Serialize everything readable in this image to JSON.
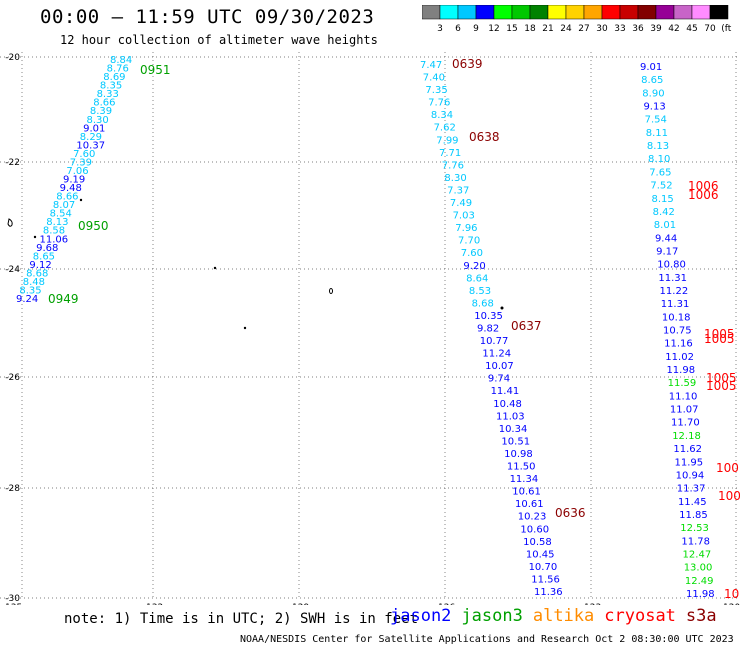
{
  "header": {
    "title": "00:00 – 11:59 UTC 09/30/2023",
    "subtitle": "12 hour collection of altimeter wave heights"
  },
  "colorbar": {
    "labels": [
      "3",
      "6",
      "9",
      "12",
      "15",
      "18",
      "21",
      "24",
      "27",
      "30",
      "33",
      "36",
      "39",
      "42",
      "45",
      "70",
      "(ft)"
    ],
    "colors": [
      "#808080",
      "#00ffff",
      "#00c8ff",
      "#0000ff",
      "#00ff00",
      "#00c800",
      "#008200",
      "#ffff00",
      "#ffd200",
      "#ffa500",
      "#ff0000",
      "#c80000",
      "#820000",
      "#960096",
      "#c864c8",
      "#ff8cff",
      "#000000"
    ]
  },
  "axes": {
    "y_ticks": [
      "-20",
      "-22",
      "-24",
      "-26",
      "-28",
      "-30"
    ],
    "x_ticks": [
      "-135",
      "-132",
      "-129",
      "-126",
      "-123",
      "-120"
    ]
  },
  "map_data": {
    "series": [
      {
        "name": "jason2",
        "color": "#0000ff"
      },
      {
        "name": "jason3",
        "color": "#00a000"
      },
      {
        "name": "altika",
        "color": "#ff8c00"
      },
      {
        "name": "cryosat",
        "color": "#ff0000"
      },
      {
        "name": "s3a",
        "color": "#8b0000"
      }
    ],
    "left_track_values": [
      {
        "v": "8.84",
        "c": "#00c8ff"
      },
      {
        "v": "8.76",
        "c": "#00c8ff"
      },
      {
        "v": "8.69",
        "c": "#00c8ff"
      },
      {
        "v": "8.35",
        "c": "#00c8ff"
      },
      {
        "v": "8.33",
        "c": "#00c8ff"
      },
      {
        "v": "8.66",
        "c": "#00c8ff"
      },
      {
        "v": "8.39",
        "c": "#00c8ff"
      },
      {
        "v": "8.30",
        "c": "#00c8ff"
      },
      {
        "v": "9.01",
        "c": "#0000ff"
      },
      {
        "v": "8.29",
        "c": "#00c8ff"
      },
      {
        "v": "10.37",
        "c": "#0000ff"
      },
      {
        "v": "7.60",
        "c": "#00c8ff"
      },
      {
        "v": "7.39",
        "c": "#00c8ff"
      },
      {
        "v": "7.06",
        "c": "#00c8ff"
      },
      {
        "v": "9.19",
        "c": "#0000ff"
      },
      {
        "v": "9.48",
        "c": "#0000ff"
      },
      {
        "v": "8.66",
        "c": "#00c8ff"
      },
      {
        "v": "8.07",
        "c": "#00c8ff"
      },
      {
        "v": "8.54",
        "c": "#00c8ff"
      },
      {
        "v": "8.13",
        "c": "#00c8ff"
      },
      {
        "v": "8.58",
        "c": "#00c8ff"
      },
      {
        "v": "11.06",
        "c": "#0000ff"
      },
      {
        "v": "9.68",
        "c": "#0000ff"
      },
      {
        "v": "8.65",
        "c": "#00c8ff"
      },
      {
        "v": "9.12",
        "c": "#0000ff"
      },
      {
        "v": "8.68",
        "c": "#00c8ff"
      },
      {
        "v": "8.48",
        "c": "#00c8ff"
      },
      {
        "v": "8.35",
        "c": "#00c8ff"
      },
      {
        "v": "9.24",
        "c": "#0000ff"
      }
    ],
    "left_track_times": [
      {
        "t": "0951",
        "c": "#00a000"
      },
      {
        "t": "0950",
        "c": "#00a000"
      },
      {
        "t": "0949",
        "c": "#00a000"
      }
    ],
    "mid_track_values": [
      {
        "v": "7.47",
        "c": "#00c8ff"
      },
      {
        "v": "7.40",
        "c": "#00c8ff"
      },
      {
        "v": "7.35",
        "c": "#00c8ff"
      },
      {
        "v": "7.76",
        "c": "#00c8ff"
      },
      {
        "v": "8.34",
        "c": "#00c8ff"
      },
      {
        "v": "7.62",
        "c": "#00c8ff"
      },
      {
        "v": "7.99",
        "c": "#00c8ff"
      },
      {
        "v": "7.71",
        "c": "#00c8ff"
      },
      {
        "v": "7.76",
        "c": "#00c8ff"
      },
      {
        "v": "8.30",
        "c": "#00c8ff"
      },
      {
        "v": "7.37",
        "c": "#00c8ff"
      },
      {
        "v": "7.49",
        "c": "#00c8ff"
      },
      {
        "v": "7.03",
        "c": "#00c8ff"
      },
      {
        "v": "7.96",
        "c": "#00c8ff"
      },
      {
        "v": "7.70",
        "c": "#00c8ff"
      },
      {
        "v": "7.60",
        "c": "#00c8ff"
      },
      {
        "v": "9.20",
        "c": "#0000ff"
      },
      {
        "v": "8.64",
        "c": "#00c8ff"
      },
      {
        "v": "8.53",
        "c": "#00c8ff"
      },
      {
        "v": "8.68",
        "c": "#00c8ff"
      },
      {
        "v": "10.35",
        "c": "#0000ff"
      },
      {
        "v": "9.82",
        "c": "#0000ff"
      },
      {
        "v": "10.77",
        "c": "#0000ff"
      },
      {
        "v": "11.24",
        "c": "#0000ff"
      },
      {
        "v": "10.07",
        "c": "#0000ff"
      },
      {
        "v": "9.74",
        "c": "#0000ff"
      },
      {
        "v": "11.41",
        "c": "#0000ff"
      },
      {
        "v": "10.48",
        "c": "#0000ff"
      },
      {
        "v": "11.03",
        "c": "#0000ff"
      },
      {
        "v": "10.34",
        "c": "#0000ff"
      },
      {
        "v": "10.51",
        "c": "#0000ff"
      },
      {
        "v": "10.98",
        "c": "#0000ff"
      },
      {
        "v": "11.50",
        "c": "#0000ff"
      },
      {
        "v": "11.34",
        "c": "#0000ff"
      },
      {
        "v": "10.61",
        "c": "#0000ff"
      },
      {
        "v": "10.61",
        "c": "#0000ff"
      },
      {
        "v": "10.23",
        "c": "#0000ff"
      },
      {
        "v": "10.60",
        "c": "#0000ff"
      },
      {
        "v": "10.58",
        "c": "#0000ff"
      },
      {
        "v": "10.45",
        "c": "#0000ff"
      },
      {
        "v": "10.70",
        "c": "#0000ff"
      },
      {
        "v": "11.56",
        "c": "#0000ff"
      },
      {
        "v": "11.36",
        "c": "#0000ff"
      }
    ],
    "mid_track_times": [
      {
        "t": "0639",
        "c": "#8b0000"
      },
      {
        "t": "0638",
        "c": "#8b0000"
      },
      {
        "t": "0637",
        "c": "#8b0000"
      },
      {
        "t": "0636",
        "c": "#8b0000"
      }
    ],
    "right_track_values": [
      {
        "v": "9.01",
        "c": "#0000ff"
      },
      {
        "v": "8.65",
        "c": "#00c8ff"
      },
      {
        "v": "8.90",
        "c": "#00c8ff"
      },
      {
        "v": "9.13",
        "c": "#0000ff"
      },
      {
        "v": "7.54",
        "c": "#00c8ff"
      },
      {
        "v": "8.11",
        "c": "#00c8ff"
      },
      {
        "v": "8.13",
        "c": "#00c8ff"
      },
      {
        "v": "8.10",
        "c": "#00c8ff"
      },
      {
        "v": "7.65",
        "c": "#00c8ff"
      },
      {
        "v": "7.52",
        "c": "#00c8ff"
      },
      {
        "v": "8.15",
        "c": "#00c8ff"
      },
      {
        "v": "8.42",
        "c": "#00c8ff"
      },
      {
        "v": "8.01",
        "c": "#00c8ff"
      },
      {
        "v": "9.44",
        "c": "#0000ff"
      },
      {
        "v": "9.17",
        "c": "#0000ff"
      },
      {
        "v": "10.80",
        "c": "#0000ff"
      },
      {
        "v": "11.31",
        "c": "#0000ff"
      },
      {
        "v": "11.22",
        "c": "#0000ff"
      },
      {
        "v": "11.31",
        "c": "#0000ff"
      },
      {
        "v": "10.18",
        "c": "#0000ff"
      },
      {
        "v": "10.75",
        "c": "#0000ff"
      },
      {
        "v": "11.16",
        "c": "#0000ff"
      },
      {
        "v": "11.02",
        "c": "#0000ff"
      },
      {
        "v": "11.98",
        "c": "#0000ff"
      },
      {
        "v": "11.59",
        "c": "#00dd00"
      },
      {
        "v": "11.10",
        "c": "#0000ff"
      },
      {
        "v": "11.07",
        "c": "#0000ff"
      },
      {
        "v": "11.70",
        "c": "#0000ff"
      },
      {
        "v": "12.18",
        "c": "#00dd00"
      },
      {
        "v": "11.62",
        "c": "#0000ff"
      },
      {
        "v": "11.95",
        "c": "#0000ff"
      },
      {
        "v": "10.94",
        "c": "#0000ff"
      },
      {
        "v": "11.37",
        "c": "#0000ff"
      },
      {
        "v": "11.45",
        "c": "#0000ff"
      },
      {
        "v": "11.85",
        "c": "#0000ff"
      },
      {
        "v": "12.53",
        "c": "#00dd00"
      },
      {
        "v": "11.78",
        "c": "#0000ff"
      },
      {
        "v": "12.47",
        "c": "#00dd00"
      },
      {
        "v": "13.00",
        "c": "#00dd00"
      },
      {
        "v": "12.49",
        "c": "#00dd00"
      },
      {
        "v": "11.98",
        "c": "#0000ff"
      }
    ],
    "right_track_times": [
      {
        "t": "1006",
        "c": "#ff0000"
      },
      {
        "t": "1006",
        "c": "#ff0000"
      },
      {
        "t": "1005",
        "c": "#ff0000"
      },
      {
        "t": "1005",
        "c": "#ff0000"
      },
      {
        "t": "1005",
        "c": "#ff0000"
      },
      {
        "t": "1005",
        "c": "#ff0000"
      },
      {
        "t": "100",
        "c": "#ff0000"
      },
      {
        "t": "100",
        "c": "#ff0000"
      },
      {
        "t": "10",
        "c": "#ff0000"
      }
    ]
  },
  "footer": {
    "note": "note: 1) Time is in UTC; 2) SWH is in feet",
    "legend": [
      {
        "label": "jason2",
        "color": "#0000ff"
      },
      {
        "label": "jason3",
        "color": "#00a000"
      },
      {
        "label": "altika",
        "color": "#ff8c00"
      },
      {
        "label": "cryosat",
        "color": "#ff0000"
      },
      {
        "label": "s3a",
        "color": "#8b0000"
      }
    ],
    "credit": "NOAA/NESDIS Center for Satellite Applications and Research   Oct  2 08:30:00 UTC 2023"
  }
}
